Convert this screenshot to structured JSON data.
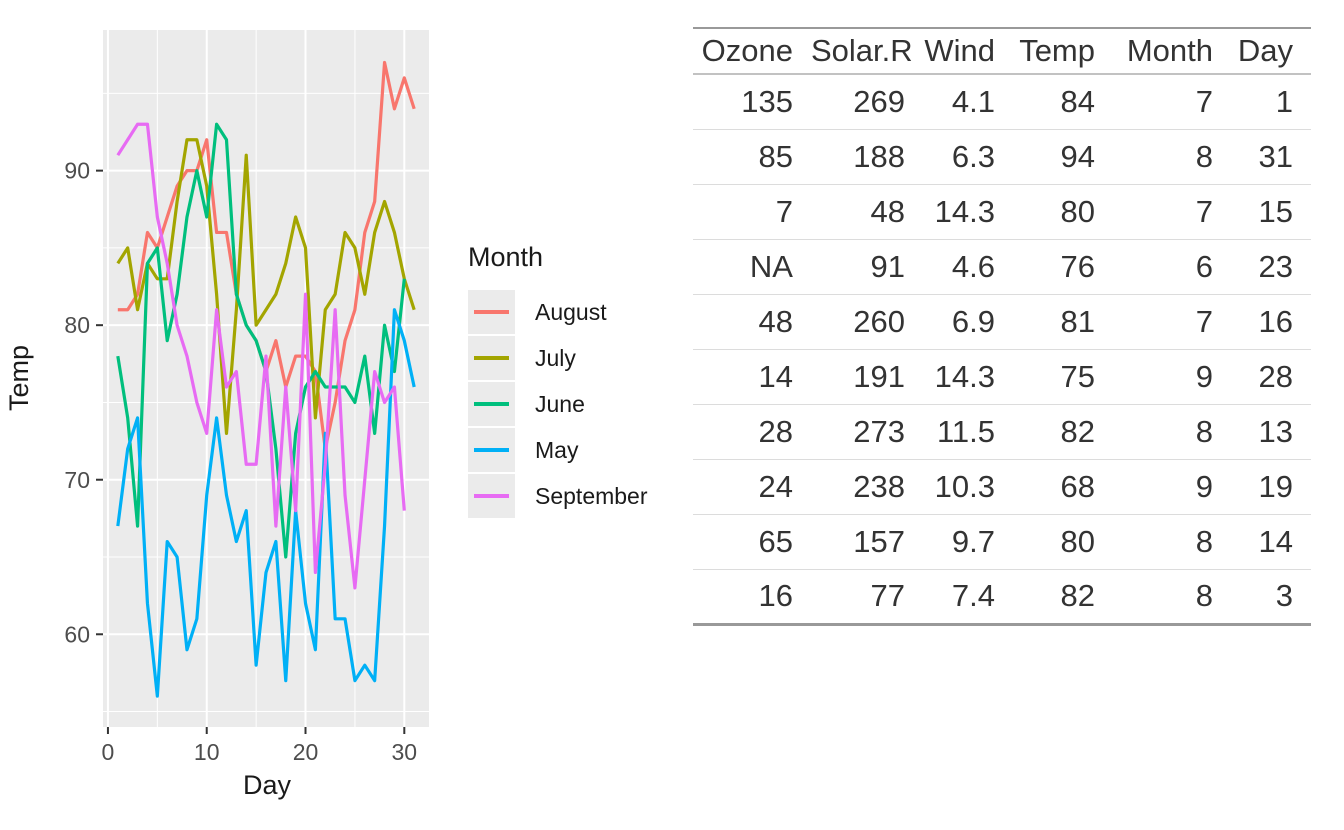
{
  "chart_data": {
    "type": "line",
    "title": "",
    "xlabel": "Day",
    "ylabel": "Temp",
    "x_ticks": [
      0,
      10,
      20,
      30
    ],
    "x_minor": [
      5,
      15,
      25
    ],
    "y_ticks": [
      60,
      70,
      80,
      90
    ],
    "y_minor": [
      55,
      65,
      75,
      85,
      95
    ],
    "xlim": [
      -0.5,
      32.5
    ],
    "ylim": [
      54.0,
      99.1
    ],
    "grid": true,
    "panel_bg": "#EBEBEB",
    "gridline_color": "#FFFFFF",
    "tick_label_color": "#4D4D4D",
    "legend": {
      "title": "Month",
      "position": "right"
    },
    "series": [
      {
        "name": "August",
        "color": "#F8766D",
        "x": [
          1,
          2,
          3,
          4,
          5,
          6,
          7,
          8,
          9,
          10,
          11,
          12,
          13,
          14,
          15,
          16,
          17,
          18,
          19,
          20,
          21,
          22,
          23,
          24,
          25,
          26,
          27,
          28,
          29,
          30,
          31
        ],
        "values": [
          81,
          81,
          82,
          86,
          85,
          87,
          89,
          90,
          90,
          92,
          86,
          86,
          82,
          80,
          79,
          77,
          79,
          76,
          78,
          78,
          77,
          72,
          75,
          79,
          81,
          86,
          88,
          97,
          94,
          96,
          94
        ]
      },
      {
        "name": "July",
        "color": "#A3A500",
        "x": [
          1,
          2,
          3,
          4,
          5,
          6,
          7,
          8,
          9,
          10,
          11,
          12,
          13,
          14,
          15,
          16,
          17,
          18,
          19,
          20,
          21,
          22,
          23,
          24,
          25,
          26,
          27,
          28,
          29,
          30,
          31
        ],
        "values": [
          84,
          85,
          81,
          84,
          83,
          83,
          88,
          92,
          92,
          89,
          82,
          73,
          81,
          91,
          80,
          81,
          82,
          84,
          87,
          85,
          74,
          81,
          82,
          86,
          85,
          82,
          86,
          88,
          86,
          83,
          81
        ]
      },
      {
        "name": "June",
        "color": "#00BF7D",
        "x": [
          1,
          2,
          3,
          4,
          5,
          6,
          7,
          8,
          9,
          10,
          11,
          12,
          13,
          14,
          15,
          16,
          17,
          18,
          19,
          20,
          21,
          22,
          23,
          24,
          25,
          26,
          27,
          28,
          29,
          30
        ],
        "values": [
          78,
          74,
          67,
          84,
          85,
          79,
          82,
          87,
          90,
          87,
          93,
          92,
          82,
          80,
          79,
          77,
          72,
          65,
          73,
          76,
          77,
          76,
          76,
          76,
          75,
          78,
          73,
          80,
          77,
          83
        ]
      },
      {
        "name": "May",
        "color": "#00B0F6",
        "x": [
          1,
          2,
          3,
          4,
          5,
          6,
          7,
          8,
          9,
          10,
          11,
          12,
          13,
          14,
          15,
          16,
          17,
          18,
          19,
          20,
          21,
          22,
          23,
          24,
          25,
          26,
          27,
          28,
          29,
          30,
          31
        ],
        "values": [
          67,
          72,
          74,
          62,
          56,
          66,
          65,
          59,
          61,
          69,
          74,
          69,
          66,
          68,
          58,
          64,
          66,
          57,
          68,
          62,
          59,
          73,
          61,
          61,
          57,
          58,
          57,
          67,
          81,
          79,
          76
        ]
      },
      {
        "name": "September",
        "color": "#E76BF3",
        "x": [
          1,
          2,
          3,
          4,
          5,
          6,
          7,
          8,
          9,
          10,
          11,
          12,
          13,
          14,
          15,
          16,
          17,
          18,
          19,
          20,
          21,
          22,
          23,
          24,
          25,
          26,
          27,
          28,
          29,
          30
        ],
        "values": [
          91,
          92,
          93,
          93,
          87,
          84,
          80,
          78,
          75,
          73,
          81,
          76,
          77,
          71,
          71,
          78,
          67,
          76,
          68,
          82,
          64,
          71,
          81,
          69,
          63,
          70,
          77,
          75,
          76,
          68
        ]
      }
    ]
  },
  "table": {
    "columns": [
      "Ozone",
      "Solar.R",
      "Wind",
      "Temp",
      "Month",
      "Day"
    ],
    "rows": [
      [
        "135",
        "269",
        "4.1",
        "84",
        "7",
        "1"
      ],
      [
        "85",
        "188",
        "6.3",
        "94",
        "8",
        "31"
      ],
      [
        "7",
        "48",
        "14.3",
        "80",
        "7",
        "15"
      ],
      [
        "NA",
        "91",
        "4.6",
        "76",
        "6",
        "23"
      ],
      [
        "48",
        "260",
        "6.9",
        "81",
        "7",
        "16"
      ],
      [
        "14",
        "191",
        "14.3",
        "75",
        "9",
        "28"
      ],
      [
        "28",
        "273",
        "11.5",
        "82",
        "8",
        "13"
      ],
      [
        "24",
        "238",
        "10.3",
        "68",
        "9",
        "19"
      ],
      [
        "65",
        "157",
        "9.7",
        "80",
        "8",
        "14"
      ],
      [
        "16",
        "77",
        "7.4",
        "82",
        "8",
        "3"
      ]
    ]
  }
}
